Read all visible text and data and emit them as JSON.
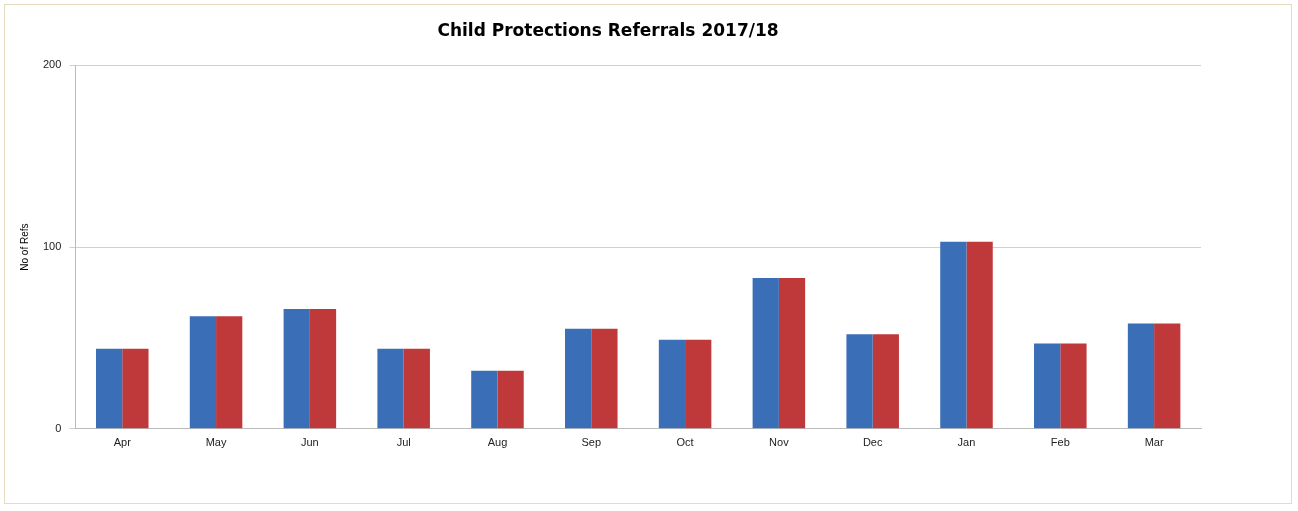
{
  "chart_data": {
    "type": "bar",
    "title": "Child Protections Referrals 2017/18",
    "ylabel": "No of Refs",
    "categories": [
      "Apr",
      "May",
      "Jun",
      "Jul",
      "Aug",
      "Sep",
      "Oct",
      "Nov",
      "Dec",
      "Jan",
      "Feb",
      "Mar"
    ],
    "series": [
      {
        "color": "#3a6fb8",
        "values": [
          44,
          62,
          66,
          44,
          32,
          55,
          49,
          83,
          52,
          103,
          47,
          58
        ]
      },
      {
        "color": "#c0393a",
        "values": [
          44,
          62,
          66,
          44,
          32,
          55,
          49,
          83,
          52,
          103,
          47,
          58
        ]
      }
    ],
    "ylim": [
      0,
      200
    ],
    "yticks": [
      0,
      100,
      200
    ],
    "grid": "y"
  }
}
